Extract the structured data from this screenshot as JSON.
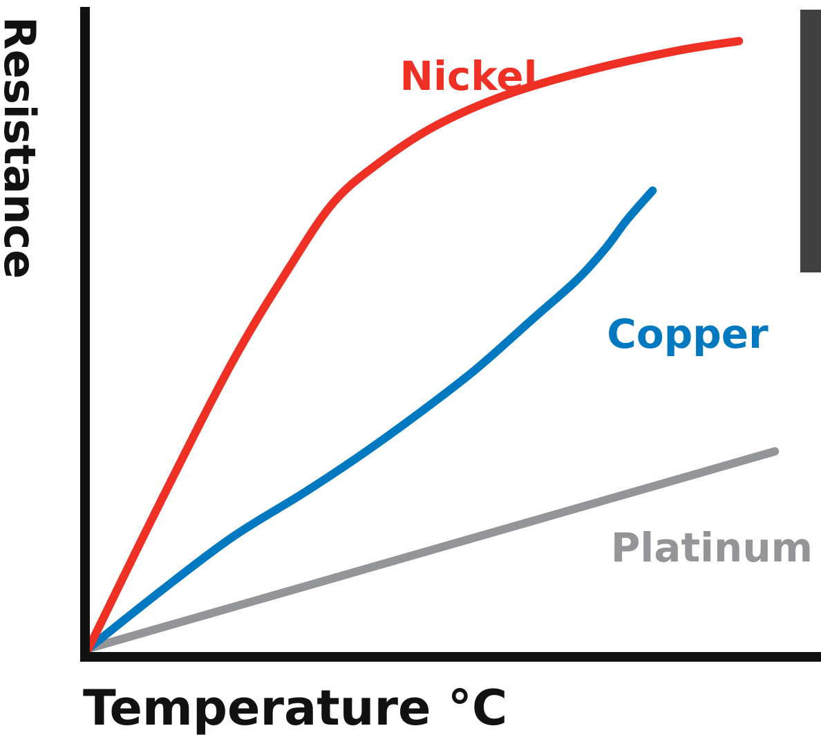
{
  "chart_data": {
    "type": "line",
    "title": "",
    "xlabel": "Temperature °C",
    "ylabel": "Resistance",
    "xlim": [
      0,
      100
    ],
    "ylim": [
      0,
      100
    ],
    "grid": false,
    "legend": "inline labels",
    "series": [
      {
        "name": "Nickel",
        "color": "#ee3124",
        "x": [
          0,
          10,
          20,
          28,
          34,
          40,
          48,
          58,
          70,
          82,
          90.5
        ],
        "y": [
          0,
          23,
          45,
          60,
          70,
          76,
          82,
          87,
          91,
          94,
          95.5
        ]
      },
      {
        "name": "Copper",
        "color": "#0079c1",
        "x": [
          0,
          10,
          20,
          30,
          38,
          46,
          54,
          62,
          68,
          72,
          75,
          78.5
        ],
        "y": [
          0,
          9,
          17.5,
          24.5,
          30.5,
          37,
          44,
          52,
          58,
          63,
          67.5,
          72
        ]
      },
      {
        "name": "Platinum",
        "color": "#939598",
        "x": [
          0,
          95.5
        ],
        "y": [
          0,
          31
        ]
      }
    ]
  },
  "colors": {
    "axis": "#111111",
    "side_box": "#404040"
  }
}
